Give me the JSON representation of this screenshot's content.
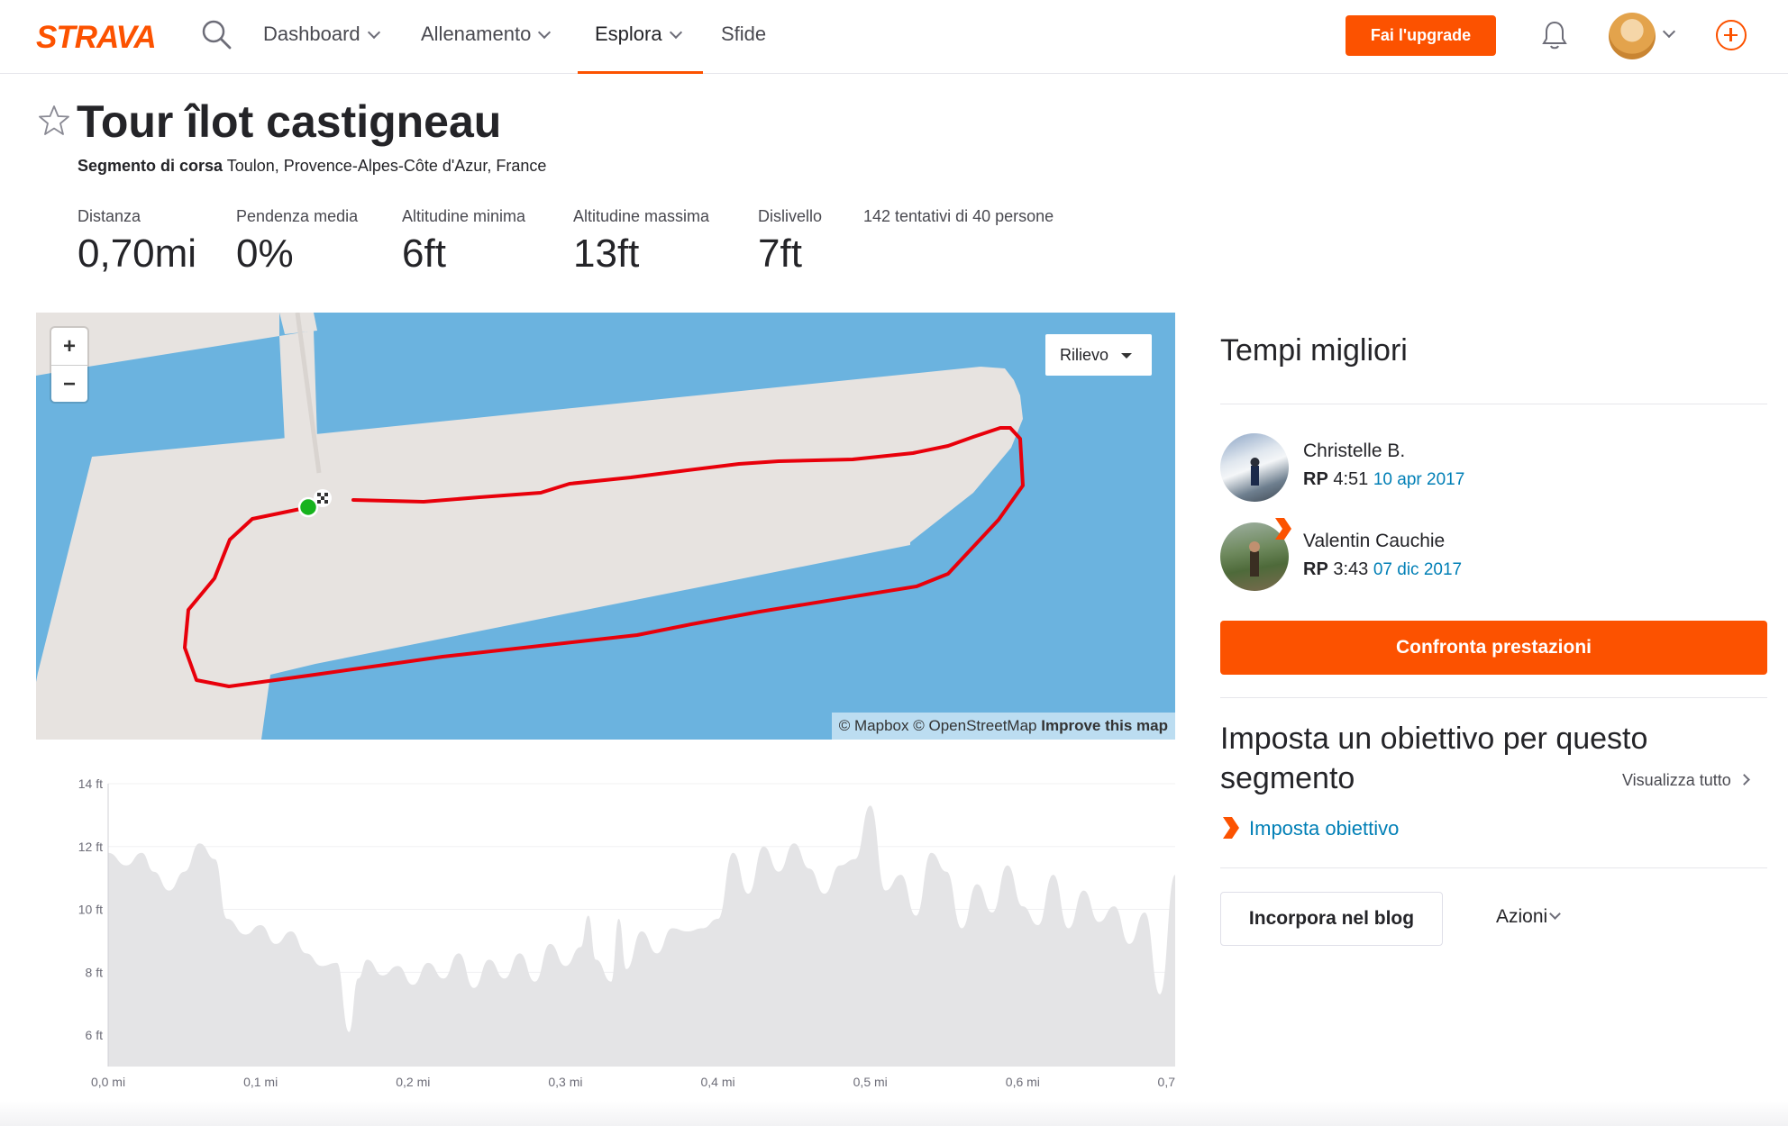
{
  "header": {
    "logo_text": "STRAVA",
    "nav": [
      {
        "label": "Dashboard",
        "dropdown": true
      },
      {
        "label": "Allenamento",
        "dropdown": true
      },
      {
        "label": "Esplora",
        "dropdown": true,
        "active": true
      },
      {
        "label": "Sfide",
        "dropdown": false
      }
    ],
    "upgrade_label": "Fai l'upgrade",
    "icons": [
      "search-icon",
      "bell-icon",
      "avatar",
      "chevron-down-icon",
      "plus-circle-icon"
    ]
  },
  "segment": {
    "title": "Tour îlot castigneau",
    "type_label": "Segmento di corsa",
    "location": "Toulon, Provence-Alpes-Côte d'Azur, France",
    "stats": [
      {
        "label": "Distanza",
        "value": "0,70mi"
      },
      {
        "label": "Pendenza media",
        "value": "0%"
      },
      {
        "label": "Altitudine minima",
        "value": "6ft"
      },
      {
        "label": "Altitudine massima",
        "value": "13ft"
      },
      {
        "label": "Dislivello",
        "value": "7ft"
      }
    ],
    "attempts": "142 tentativi di 40 persone"
  },
  "map": {
    "zoom_in": "+",
    "zoom_out": "−",
    "layer_label": "Rilievo",
    "attribution": {
      "mapbox": "© Mapbox",
      "osm": "© OpenStreetMap",
      "improve": "Improve this map"
    },
    "route_color": "#e8000b",
    "water_color": "#6bb3df",
    "land_color": "#e7e3e0"
  },
  "chart_data": {
    "type": "area",
    "title": "",
    "xlabel": "",
    "ylabel": "",
    "x_ticks": [
      "0,0 mi",
      "0,1 mi",
      "0,2 mi",
      "0,3 mi",
      "0,4 mi",
      "0,5 mi",
      "0,6 mi",
      "0,7"
    ],
    "y_ticks": [
      "14 ft",
      "12 ft",
      "10 ft",
      "8 ft",
      "6 ft"
    ],
    "xlim": [
      0,
      0.7
    ],
    "ylim": [
      5,
      14
    ],
    "series": [
      {
        "x": [
          0,
          0.012,
          0.022,
          0.03,
          0.04,
          0.05,
          0.06,
          0.07,
          0.078,
          0.09,
          0.1,
          0.11,
          0.12,
          0.13,
          0.14,
          0.15,
          0.158,
          0.164,
          0.17,
          0.18,
          0.19,
          0.2,
          0.21,
          0.22,
          0.23,
          0.24,
          0.25,
          0.26,
          0.27,
          0.28,
          0.29,
          0.3,
          0.31,
          0.315,
          0.32,
          0.33,
          0.335,
          0.34,
          0.35,
          0.36,
          0.37,
          0.38,
          0.39,
          0.4,
          0.41,
          0.42,
          0.43,
          0.44,
          0.45,
          0.46,
          0.47,
          0.48,
          0.49,
          0.5,
          0.51,
          0.52,
          0.53,
          0.54,
          0.55,
          0.56,
          0.57,
          0.58,
          0.59,
          0.6,
          0.61,
          0.62,
          0.63,
          0.64,
          0.65,
          0.66,
          0.67,
          0.68,
          0.69,
          0.7
        ],
        "values": [
          11.8,
          11.4,
          11.8,
          11.2,
          10.6,
          11.2,
          12.1,
          11.6,
          9.7,
          9.2,
          9.5,
          8.9,
          9.3,
          8.6,
          8.2,
          8.3,
          6.1,
          7.8,
          8.4,
          7.9,
          8.2,
          7.6,
          8.3,
          7.8,
          8.6,
          7.5,
          8.4,
          7.8,
          8.6,
          7.7,
          8.9,
          8.2,
          8.8,
          9.8,
          8.4,
          7.7,
          9.7,
          8.1,
          9.3,
          8.6,
          9.4,
          9.3,
          9.4,
          9.7,
          11.8,
          10.5,
          12.0,
          11.2,
          12.1,
          11.3,
          10.5,
          11.4,
          11.6,
          13.3,
          10.6,
          11.1,
          9.8,
          11.8,
          11.2,
          9.4,
          10.8,
          9.9,
          11.4,
          10.1,
          9.5,
          11.1,
          9.4,
          10.6,
          9.6,
          10.1,
          8.9,
          9.9,
          7.3,
          11.1
        ]
      }
    ],
    "fill_color": "#e4e4e6",
    "grid": true
  },
  "sidebar": {
    "best_times_title": "Tempi migliori",
    "leaders": [
      {
        "name": "Christelle B.",
        "pr_label": "RP",
        "time": "4:51",
        "date": "10 apr 2017"
      },
      {
        "name": "Valentin Cauchie",
        "pr_label": "RP",
        "time": "3:43",
        "date": "07 dic 2017"
      }
    ],
    "compare_label": "Confronta prestazioni",
    "goal_title": "Imposta un obiettivo per questo segmento",
    "view_all_label": "Visualizza tutto",
    "set_goal_label": "Imposta obiettivo",
    "embed_label": "Incorpora nel blog",
    "actions_label": "Azioni"
  },
  "colors": {
    "brand": "#fc5200",
    "link": "#007fb6",
    "text": "#242428"
  }
}
